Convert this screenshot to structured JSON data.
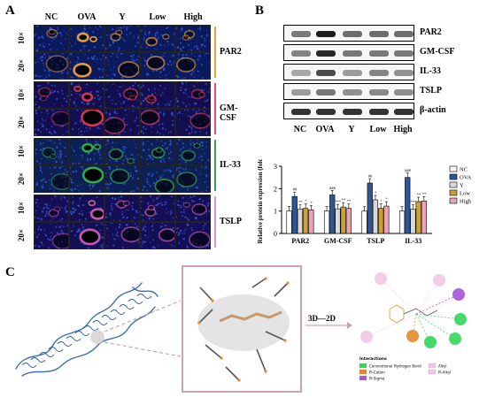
{
  "panel_a": {
    "letter": "A",
    "columns": [
      "NC",
      "OVA",
      "Y",
      "Low",
      "High"
    ],
    "magnifications": [
      "10×",
      "20×",
      "10×",
      "20×",
      "10×",
      "20×",
      "10×",
      "20×"
    ],
    "groups": [
      {
        "label": "PAR2",
        "color": "#f0a13a"
      },
      {
        "label": "GM-CSF",
        "color": "#e0506a"
      },
      {
        "label": "IL-33",
        "color": "#2fa84b"
      },
      {
        "label": "TSLP",
        "color": "#e08fcf"
      }
    ]
  },
  "panel_b": {
    "letter": "B",
    "blot_rows": [
      "PAR2",
      "GM-CSF",
      "IL-33",
      "TSLP",
      "β-actin"
    ],
    "lanes": [
      "NC",
      "OVA",
      "Y",
      "Low",
      "High"
    ]
  },
  "panel_c": {
    "letter": "C",
    "arrow_label": "3D—2D",
    "interactions_title": "Interactions",
    "interaction_types": [
      {
        "label": "Conventional Hydrogen Bond",
        "color": "#33d65a"
      },
      {
        "label": "Pi-Cation",
        "color": "#e08a2a"
      },
      {
        "label": "Pi-Sigma",
        "color": "#a553d6"
      },
      {
        "label": "Alkyl",
        "color": "#f2c6e6"
      },
      {
        "label": "Pi-Alkyl",
        "color": "#f2c6e6"
      }
    ]
  },
  "chart_data": {
    "type": "bar",
    "ylabel": "Relative protein expression (fold)",
    "ylim": [
      0,
      3
    ],
    "yticks": [
      0,
      1,
      2,
      3
    ],
    "categories": [
      "PAR2",
      "GM-CSF",
      "TSLP",
      "IL-33"
    ],
    "series": [
      {
        "name": "NC",
        "color": "#ffffff",
        "values": [
          1.0,
          1.0,
          1.0,
          1.0
        ]
      },
      {
        "name": "OVA",
        "color": "#2f5597",
        "values": [
          1.65,
          1.72,
          2.25,
          2.5
        ]
      },
      {
        "name": "Y",
        "color": "#d9d9d9",
        "values": [
          1.08,
          1.1,
          1.5,
          1.08
        ]
      },
      {
        "name": "Low",
        "color": "#c9a13b",
        "values": [
          1.12,
          1.18,
          1.12,
          1.42
        ]
      },
      {
        "name": "High",
        "color": "#e9a3b5",
        "values": [
          1.05,
          1.12,
          1.22,
          1.45
        ]
      }
    ],
    "significance": [
      [
        "",
        "##",
        "**",
        "*",
        "*"
      ],
      [
        "",
        "###",
        "***",
        "**",
        "**"
      ],
      [
        "",
        "##",
        "*",
        "*",
        "*"
      ],
      [
        "",
        "###",
        "***",
        "**",
        "**"
      ]
    ],
    "legend_position": "top-right"
  }
}
